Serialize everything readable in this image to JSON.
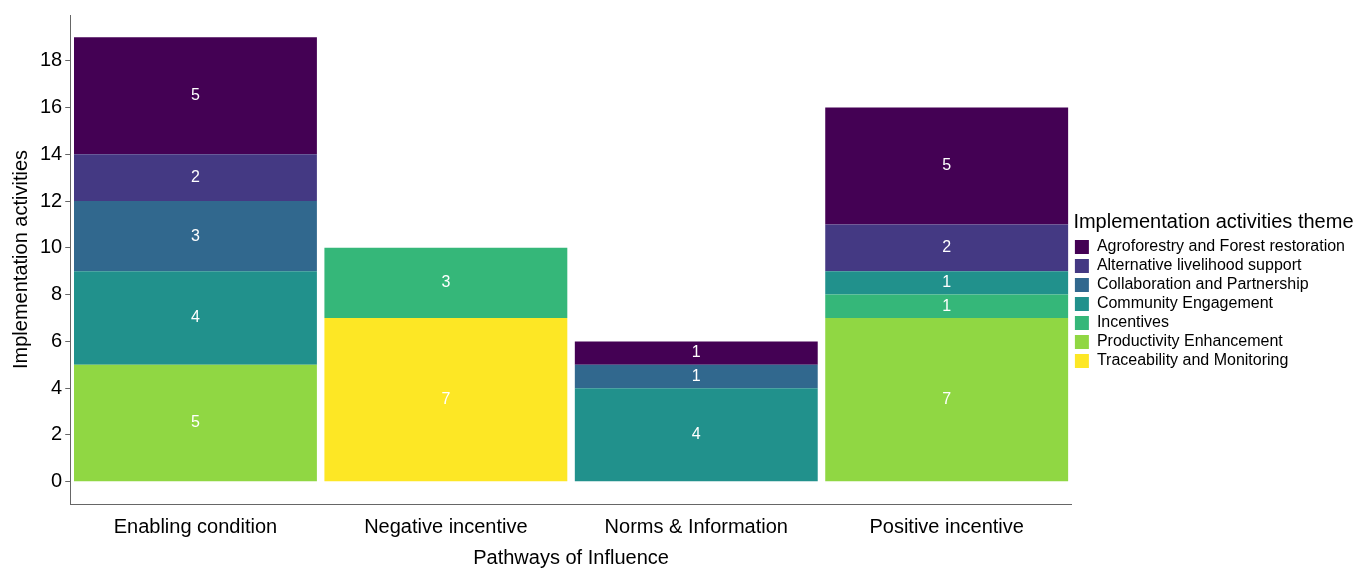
{
  "chart_data": {
    "type": "bar",
    "stacked": true,
    "xlabel": "Pathways of Influence",
    "ylabel": "Implementation activities",
    "legend_title": "Implementation activities theme",
    "legend": "right",
    "data_labels": true,
    "categories": [
      "Enabling condition",
      "Negative incentive",
      "Norms & Information",
      "Positive incentive"
    ],
    "ylim": [
      -0.95,
      19.95
    ],
    "yticks": [
      0,
      2,
      4,
      6,
      8,
      10,
      12,
      14,
      16,
      18
    ],
    "series": [
      {
        "name": "Traceability and Monitoring",
        "color": "#fde725",
        "values": [
          null,
          7,
          null,
          null
        ]
      },
      {
        "name": "Productivity Enhancement",
        "color": "#90d743",
        "values": [
          5,
          null,
          null,
          7
        ]
      },
      {
        "name": "Incentives",
        "color": "#35b779",
        "values": [
          null,
          3,
          null,
          1
        ]
      },
      {
        "name": "Community Engagement",
        "color": "#21918c",
        "values": [
          4,
          null,
          4,
          1
        ]
      },
      {
        "name": "Collaboration and Partnership",
        "color": "#31688e",
        "values": [
          3,
          null,
          1,
          null
        ]
      },
      {
        "name": "Alternative livelihood support",
        "color": "#443983",
        "values": [
          2,
          null,
          null,
          2
        ]
      },
      {
        "name": "Agroforestry and Forest restoration",
        "color": "#440154",
        "values": [
          5,
          null,
          1,
          5
        ]
      }
    ]
  }
}
